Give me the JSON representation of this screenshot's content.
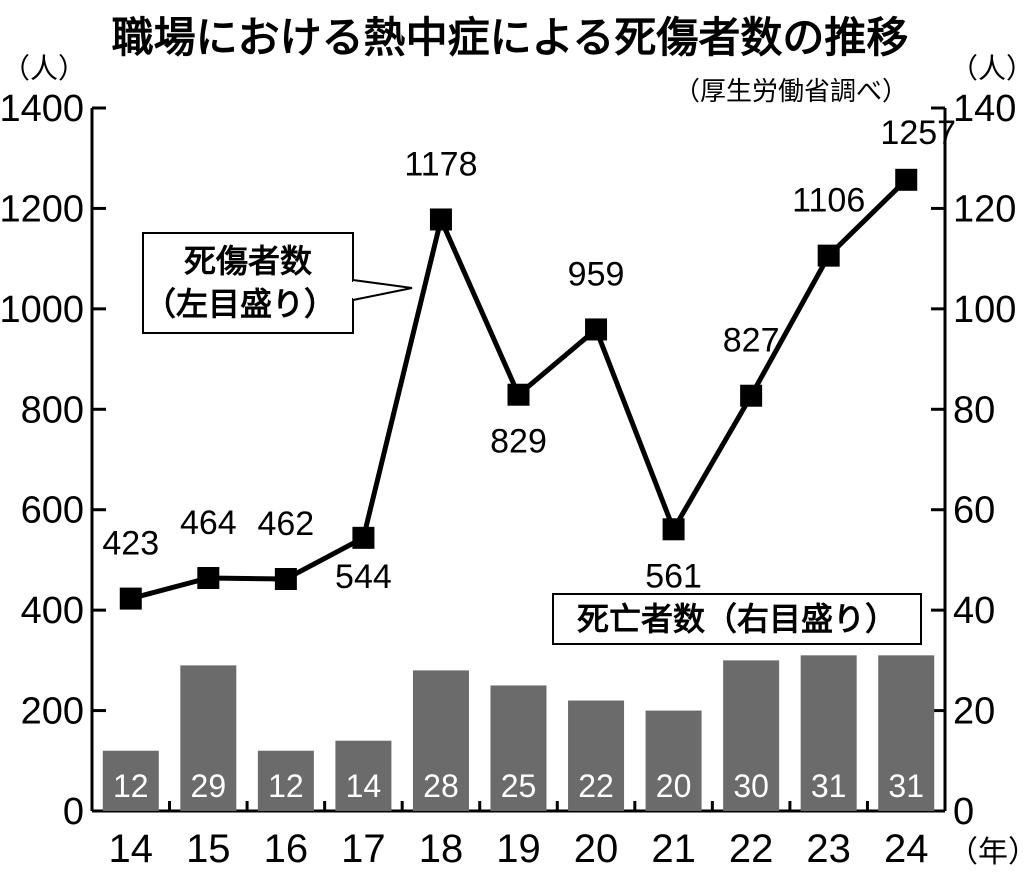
{
  "title": "職場における熱中症による死傷者数の推移",
  "source": "（厚生労働省調べ）",
  "left_unit": "（人）",
  "right_unit": "（人）",
  "x_unit": "（年）",
  "legend_casualties": [
    "死傷者数",
    "（左目盛り）"
  ],
  "legend_deaths": "死亡者数（右目盛り）",
  "colors": {
    "bar": "#6b6b6b",
    "line": "#000000",
    "marker": "#000000"
  },
  "chart_data": {
    "type": "bar+line",
    "categories": [
      "14",
      "15",
      "16",
      "17",
      "18",
      "19",
      "20",
      "21",
      "22",
      "23",
      "24"
    ],
    "series": [
      {
        "name": "死傷者数（左目盛り）",
        "type": "line",
        "axis": "left",
        "values": [
          423,
          464,
          462,
          544,
          1178,
          829,
          959,
          561,
          827,
          1106,
          1257
        ]
      },
      {
        "name": "死亡者数（右目盛り）",
        "type": "bar",
        "axis": "right",
        "values": [
          12,
          29,
          12,
          14,
          28,
          25,
          22,
          20,
          30,
          31,
          31
        ]
      }
    ],
    "y_left": {
      "min": 0,
      "max": 1400,
      "ticks": [
        0,
        200,
        400,
        600,
        800,
        1000,
        1200,
        1400
      ]
    },
    "y_right": {
      "min": 0,
      "max": 140,
      "ticks": [
        0,
        20,
        40,
        60,
        80,
        100,
        120,
        140
      ]
    },
    "grid": false
  }
}
